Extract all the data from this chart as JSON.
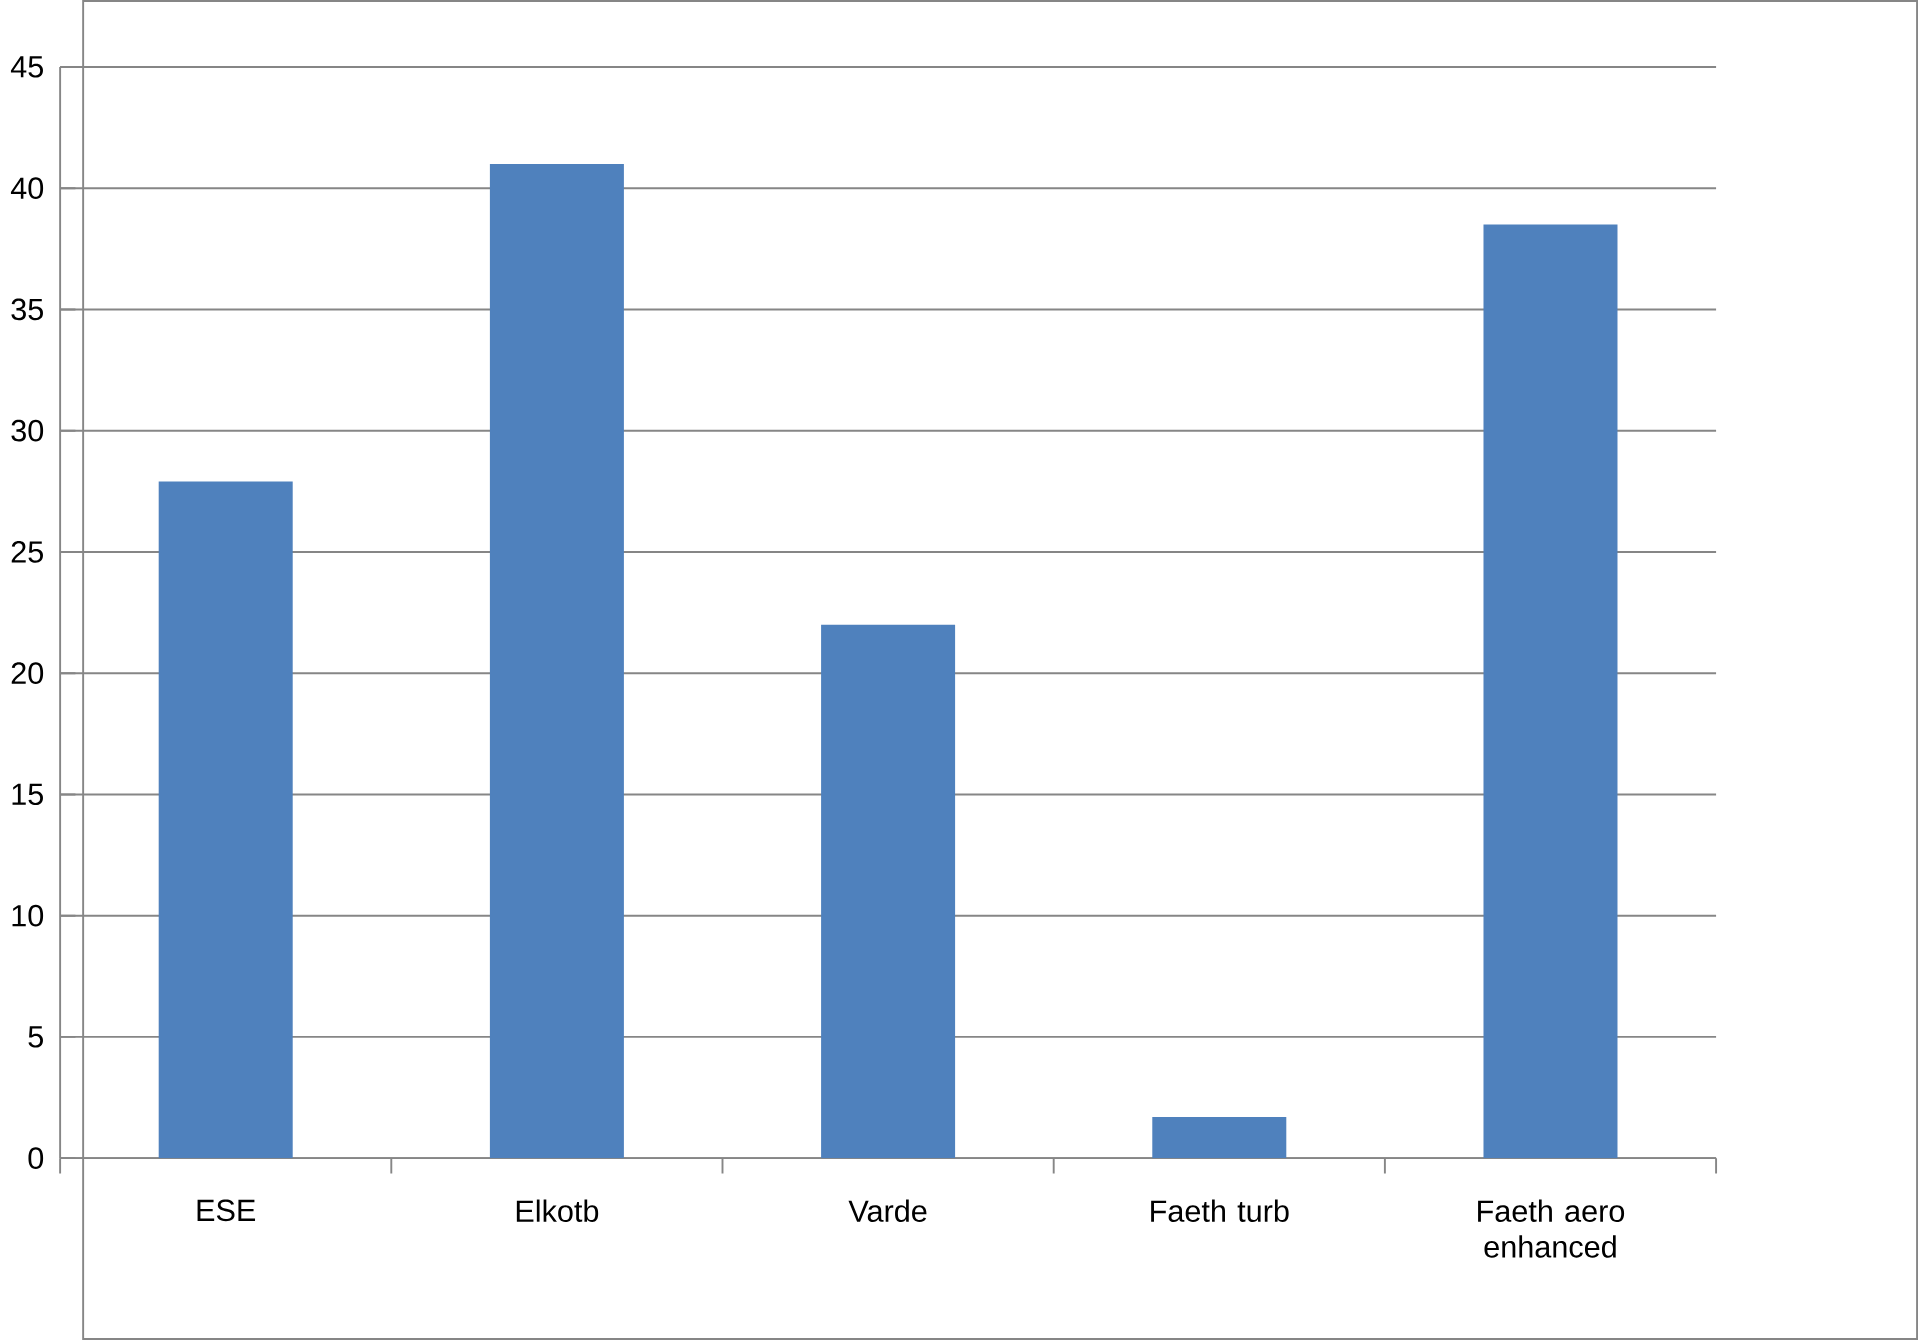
{
  "chart_data": {
    "type": "bar",
    "categories": [
      "ESE",
      "Elkotb",
      "Varde",
      "Faeth turb",
      "Faeth aero enhanced"
    ],
    "values": [
      27.9,
      41,
      22,
      1.7,
      38.5
    ],
    "color": "#4f81bd",
    "ylim": [
      0,
      45
    ],
    "yticks": [
      0,
      5,
      10,
      15,
      20,
      25,
      30,
      35,
      40,
      45
    ],
    "grid": "y"
  }
}
